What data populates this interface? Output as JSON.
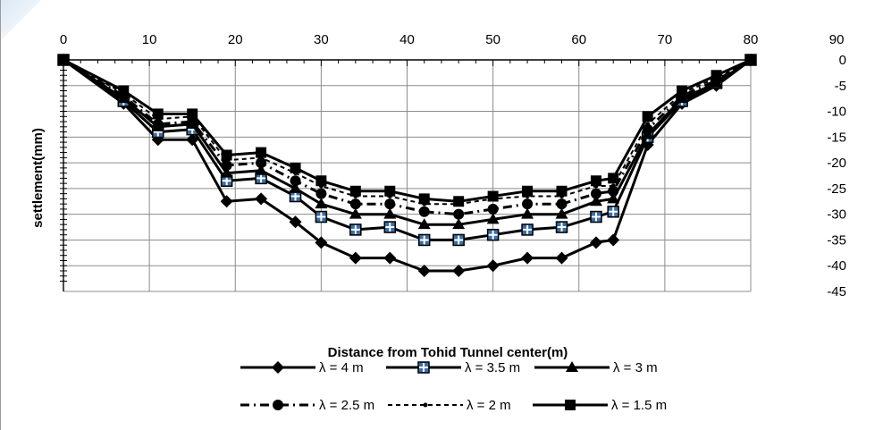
{
  "chart_data": {
    "type": "line",
    "xlabel": "Distance from Tohid Tunnel center(m)",
    "ylabel": "settlement(mm)",
    "xlim": [
      0,
      90
    ],
    "ylim": [
      -45,
      0
    ],
    "x_ticks": [
      "0",
      "10",
      "20",
      "30",
      "40",
      "50",
      "60",
      "70",
      "80",
      "90"
    ],
    "y_ticks": [
      "0",
      "-5",
      "-10",
      "-15",
      "-20",
      "-25",
      "-30",
      "-35",
      "-40",
      "-45"
    ],
    "x_axis_position": "top",
    "y_axis_position": "right",
    "grid": true,
    "legend_position": "bottom",
    "x": [
      0,
      7,
      11,
      15,
      19,
      23,
      27,
      30,
      34,
      38,
      42,
      46,
      50,
      54,
      58,
      62,
      64,
      68,
      72,
      76,
      80
    ],
    "series": [
      {
        "name": "λ = 4 m",
        "marker": "diamond",
        "dash": "solid",
        "values": [
          0,
          -8.5,
          -15.5,
          -15.5,
          -27.5,
          -27,
          -31.5,
          -35.5,
          -38.5,
          -38.5,
          -41,
          -41,
          -40,
          -38.5,
          -38.5,
          -35.5,
          -35,
          -16.5,
          -8.5,
          -5,
          0
        ]
      },
      {
        "name": "λ = 3.5 m",
        "marker": "square-cross",
        "dash": "solid",
        "values": [
          0,
          -8,
          -14,
          -13.5,
          -23.5,
          -23,
          -26.5,
          -30.5,
          -33,
          -32.5,
          -35,
          -35,
          -34,
          -33,
          -32.5,
          -30.5,
          -29.5,
          -15,
          -8,
          -4.5,
          0
        ]
      },
      {
        "name": "λ = 3 m",
        "marker": "triangle",
        "dash": "solid",
        "values": [
          0,
          -7.5,
          -13,
          -12.5,
          -22,
          -21.5,
          -25,
          -28,
          -30,
          -30,
          -32,
          -32,
          -31,
          -30,
          -30,
          -27.5,
          -27,
          -14.5,
          -7.5,
          -4.5,
          0
        ]
      },
      {
        "name": "λ = 2.5 m",
        "marker": "circle",
        "dash": "dashdot",
        "values": [
          0,
          -7,
          -12.5,
          -12,
          -20.5,
          -20,
          -23.5,
          -26,
          -28,
          -28,
          -29.5,
          -30,
          -29,
          -28,
          -28,
          -26,
          -25.5,
          -13.5,
          -7,
          -4,
          0
        ]
      },
      {
        "name": "λ = 2 m",
        "marker": "dot",
        "dash": "dashed",
        "values": [
          0,
          -6.5,
          -11.5,
          -11,
          -19.5,
          -19,
          -22,
          -24.5,
          -26.5,
          -26.5,
          -28,
          -28,
          -27,
          -26.5,
          -26.5,
          -24.5,
          -24.5,
          -12.5,
          -6.5,
          -3.5,
          0
        ]
      },
      {
        "name": "λ = 1.5 m",
        "marker": "square",
        "dash": "solid",
        "values": [
          0,
          -6,
          -10.5,
          -10.5,
          -18.5,
          -18,
          -21,
          -23.5,
          -25.5,
          -25.5,
          -27,
          -27.5,
          -26.5,
          -25.5,
          -25.5,
          -23.5,
          -23,
          -11,
          -6,
          -3,
          0
        ]
      }
    ]
  }
}
